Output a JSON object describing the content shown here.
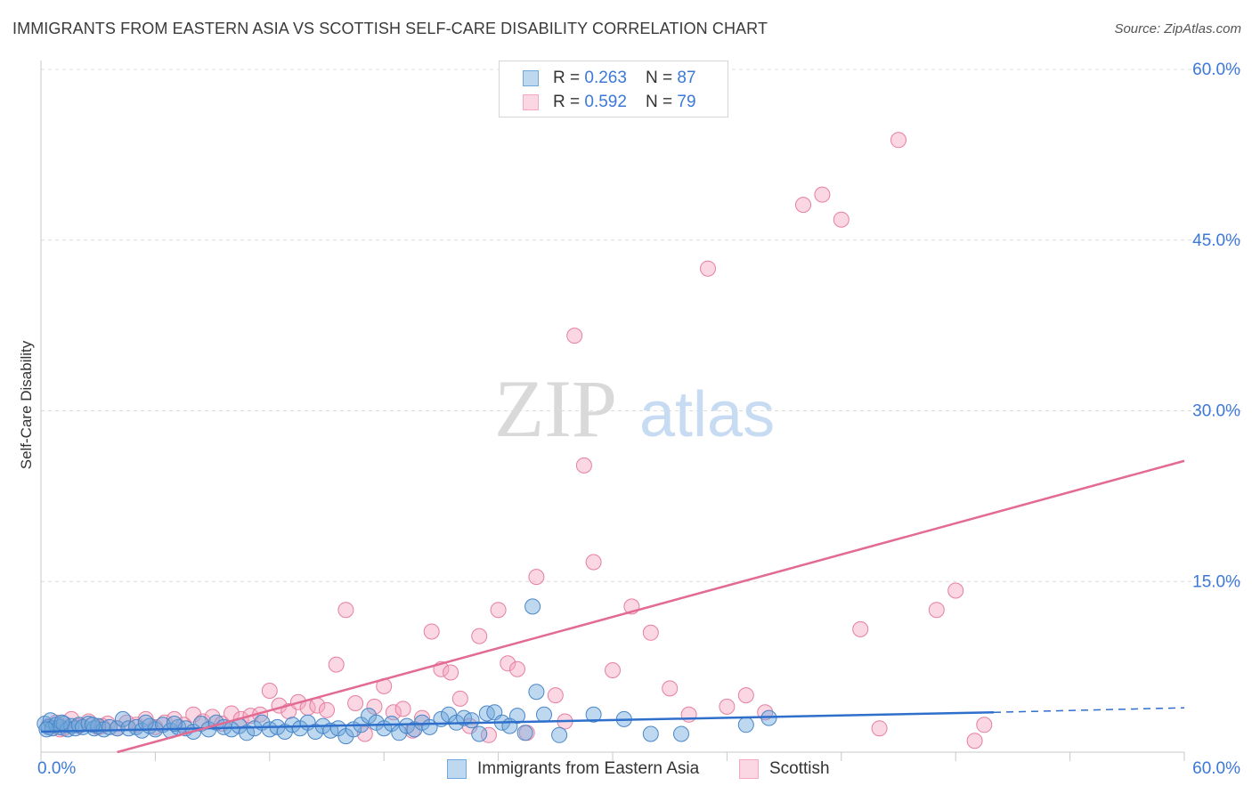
{
  "title": "IMMIGRANTS FROM EASTERN ASIA VS SCOTTISH SELF-CARE DISABILITY CORRELATION CHART",
  "source": "Source: ZipAtlas.com",
  "watermark": {
    "zip": "ZIP",
    "atlas": "atlas"
  },
  "legend_top": [
    {
      "r_label": "R = ",
      "r_value": "0.263",
      "n_label": "N = ",
      "n_value": "87",
      "color": "#6fa8dc"
    },
    {
      "r_label": "R = ",
      "r_value": "0.592",
      "n_label": "N = ",
      "n_value": "79",
      "color": "#f4a7bf"
    }
  ],
  "legend_bottom": [
    {
      "label": "Immigrants from Eastern Asia",
      "color": "#6fa8dc"
    },
    {
      "label": "Scottish",
      "color": "#f4a7bf"
    }
  ],
  "chart_data": {
    "type": "scatter",
    "title": "IMMIGRANTS FROM EASTERN ASIA VS SCOTTISH SELF-CARE DISABILITY CORRELATION CHART",
    "xlabel": "",
    "ylabel": "Self-Care Disability",
    "xlim": [
      0,
      60
    ],
    "ylim": [
      0,
      60
    ],
    "x_tick_labels": [
      "0.0%",
      "60.0%"
    ],
    "y_ticks": [
      15,
      30,
      45,
      60
    ],
    "y_tick_labels": [
      "15.0%",
      "30.0%",
      "45.0%",
      "60.0%"
    ],
    "series": [
      {
        "name": "Immigrants from Eastern Asia",
        "color": "#6fa8dc",
        "edge": "#4a86c8",
        "trend": {
          "x0": 0,
          "y0": 1.8,
          "x1": 50,
          "y1": 3.5,
          "dash_to": 60,
          "dash_y": 3.9,
          "color": "#2f6fcc"
        },
        "points": [
          [
            0.2,
            2.5
          ],
          [
            0.4,
            2.2
          ],
          [
            0.5,
            2.8
          ],
          [
            0.6,
            2.1
          ],
          [
            0.8,
            2.4
          ],
          [
            1.0,
            2.2
          ],
          [
            1.2,
            2.5
          ],
          [
            1.4,
            2.0
          ],
          [
            1.6,
            2.3
          ],
          [
            1.8,
            2.1
          ],
          [
            2.0,
            2.4
          ],
          [
            2.2,
            2.2
          ],
          [
            2.5,
            2.5
          ],
          [
            2.8,
            2.1
          ],
          [
            3.0,
            2.3
          ],
          [
            3.3,
            2.0
          ],
          [
            3.6,
            2.2
          ],
          [
            4.0,
            2.1
          ],
          [
            4.3,
            2.9
          ],
          [
            4.6,
            2.1
          ],
          [
            5.0,
            2.2
          ],
          [
            5.3,
            1.9
          ],
          [
            5.7,
            2.3
          ],
          [
            6.0,
            2.0
          ],
          [
            6.4,
            2.4
          ],
          [
            6.8,
            1.9
          ],
          [
            7.2,
            2.2
          ],
          [
            7.6,
            2.1
          ],
          [
            8.0,
            1.8
          ],
          [
            8.4,
            2.5
          ],
          [
            8.8,
            2.0
          ],
          [
            9.2,
            2.6
          ],
          [
            9.6,
            2.2
          ],
          [
            10.0,
            2.0
          ],
          [
            10.4,
            2.3
          ],
          [
            10.8,
            1.7
          ],
          [
            11.2,
            2.1
          ],
          [
            11.6,
            2.6
          ],
          [
            12.0,
            2.0
          ],
          [
            12.4,
            2.2
          ],
          [
            12.8,
            1.8
          ],
          [
            13.2,
            2.4
          ],
          [
            13.6,
            2.1
          ],
          [
            14.0,
            2.6
          ],
          [
            14.4,
            1.8
          ],
          [
            14.8,
            2.3
          ],
          [
            15.2,
            1.9
          ],
          [
            15.6,
            2.1
          ],
          [
            16.0,
            1.4
          ],
          [
            16.4,
            2.0
          ],
          [
            16.8,
            2.4
          ],
          [
            17.2,
            3.2
          ],
          [
            17.6,
            2.6
          ],
          [
            18.0,
            2.1
          ],
          [
            18.4,
            2.5
          ],
          [
            18.8,
            1.7
          ],
          [
            19.2,
            2.3
          ],
          [
            19.6,
            2.0
          ],
          [
            20.0,
            2.6
          ],
          [
            20.4,
            2.2
          ],
          [
            21.0,
            2.9
          ],
          [
            21.4,
            3.3
          ],
          [
            21.8,
            2.6
          ],
          [
            22.2,
            3.0
          ],
          [
            22.6,
            2.8
          ],
          [
            23.0,
            1.6
          ],
          [
            23.4,
            3.4
          ],
          [
            23.8,
            3.5
          ],
          [
            24.2,
            2.6
          ],
          [
            24.6,
            2.3
          ],
          [
            25.0,
            3.2
          ],
          [
            25.4,
            1.7
          ],
          [
            25.8,
            12.8
          ],
          [
            26.0,
            5.3
          ],
          [
            26.4,
            3.3
          ],
          [
            27.2,
            1.5
          ],
          [
            29.0,
            3.3
          ],
          [
            30.6,
            2.9
          ],
          [
            32.0,
            1.6
          ],
          [
            33.6,
            1.6
          ],
          [
            37.0,
            2.4
          ],
          [
            38.2,
            3.0
          ],
          [
            0.3,
            2.0
          ],
          [
            1.1,
            2.6
          ],
          [
            2.7,
            2.4
          ],
          [
            5.5,
            2.6
          ],
          [
            7.0,
            2.5
          ]
        ]
      },
      {
        "name": "Scottish",
        "color": "#f4a7bf",
        "edge": "#e67fa0",
        "trend": {
          "x0": 4,
          "y0": 0,
          "x1": 60,
          "y1": 25.6,
          "color": "#e36a93"
        },
        "points": [
          [
            0.4,
            2.3
          ],
          [
            0.8,
            2.6
          ],
          [
            1.2,
            2.1
          ],
          [
            1.6,
            2.9
          ],
          [
            2.0,
            2.3
          ],
          [
            2.5,
            2.7
          ],
          [
            3.0,
            2.2
          ],
          [
            3.5,
            2.5
          ],
          [
            4.0,
            2.1
          ],
          [
            4.5,
            2.6
          ],
          [
            5.0,
            2.4
          ],
          [
            5.5,
            2.9
          ],
          [
            6.0,
            2.2
          ],
          [
            6.5,
            2.6
          ],
          [
            7.0,
            2.9
          ],
          [
            7.5,
            2.4
          ],
          [
            8.0,
            3.3
          ],
          [
            8.5,
            2.7
          ],
          [
            9.0,
            3.1
          ],
          [
            9.5,
            2.5
          ],
          [
            10.0,
            3.4
          ],
          [
            10.5,
            2.9
          ],
          [
            11.0,
            3.2
          ],
          [
            11.5,
            3.3
          ],
          [
            12.0,
            5.4
          ],
          [
            12.5,
            4.1
          ],
          [
            13.0,
            3.6
          ],
          [
            13.5,
            4.4
          ],
          [
            14.0,
            3.9
          ],
          [
            14.5,
            4.1
          ],
          [
            15.0,
            3.7
          ],
          [
            15.5,
            7.7
          ],
          [
            16.0,
            12.5
          ],
          [
            16.5,
            4.3
          ],
          [
            17.0,
            1.6
          ],
          [
            17.5,
            4.0
          ],
          [
            18.0,
            5.8
          ],
          [
            18.5,
            3.5
          ],
          [
            19.0,
            3.8
          ],
          [
            19.5,
            1.9
          ],
          [
            20.0,
            3.0
          ],
          [
            20.5,
            10.6
          ],
          [
            21.0,
            7.3
          ],
          [
            21.5,
            7.0
          ],
          [
            22.0,
            4.7
          ],
          [
            22.5,
            2.3
          ],
          [
            23.0,
            10.2
          ],
          [
            23.5,
            1.5
          ],
          [
            24.0,
            12.5
          ],
          [
            24.5,
            7.8
          ],
          [
            25.0,
            7.3
          ],
          [
            25.5,
            1.7
          ],
          [
            26.0,
            15.4
          ],
          [
            27.0,
            5.0
          ],
          [
            27.5,
            2.7
          ],
          [
            28.0,
            36.6
          ],
          [
            28.5,
            25.2
          ],
          [
            29.0,
            16.7
          ],
          [
            30.0,
            7.2
          ],
          [
            31.0,
            12.8
          ],
          [
            32.0,
            10.5
          ],
          [
            33.0,
            5.6
          ],
          [
            34.0,
            3.3
          ],
          [
            35.0,
            42.5
          ],
          [
            36.0,
            4.0
          ],
          [
            37.0,
            5.0
          ],
          [
            38.0,
            3.5
          ],
          [
            40.0,
            48.1
          ],
          [
            41.0,
            49.0
          ],
          [
            42.0,
            46.8
          ],
          [
            43.0,
            10.8
          ],
          [
            44.0,
            2.1
          ],
          [
            45.0,
            53.8
          ],
          [
            47.0,
            12.5
          ],
          [
            48.0,
            14.2
          ],
          [
            49.0,
            1.0
          ],
          [
            49.5,
            2.4
          ],
          [
            1.0,
            2.0
          ],
          [
            3.2,
            2.3
          ]
        ]
      }
    ]
  }
}
